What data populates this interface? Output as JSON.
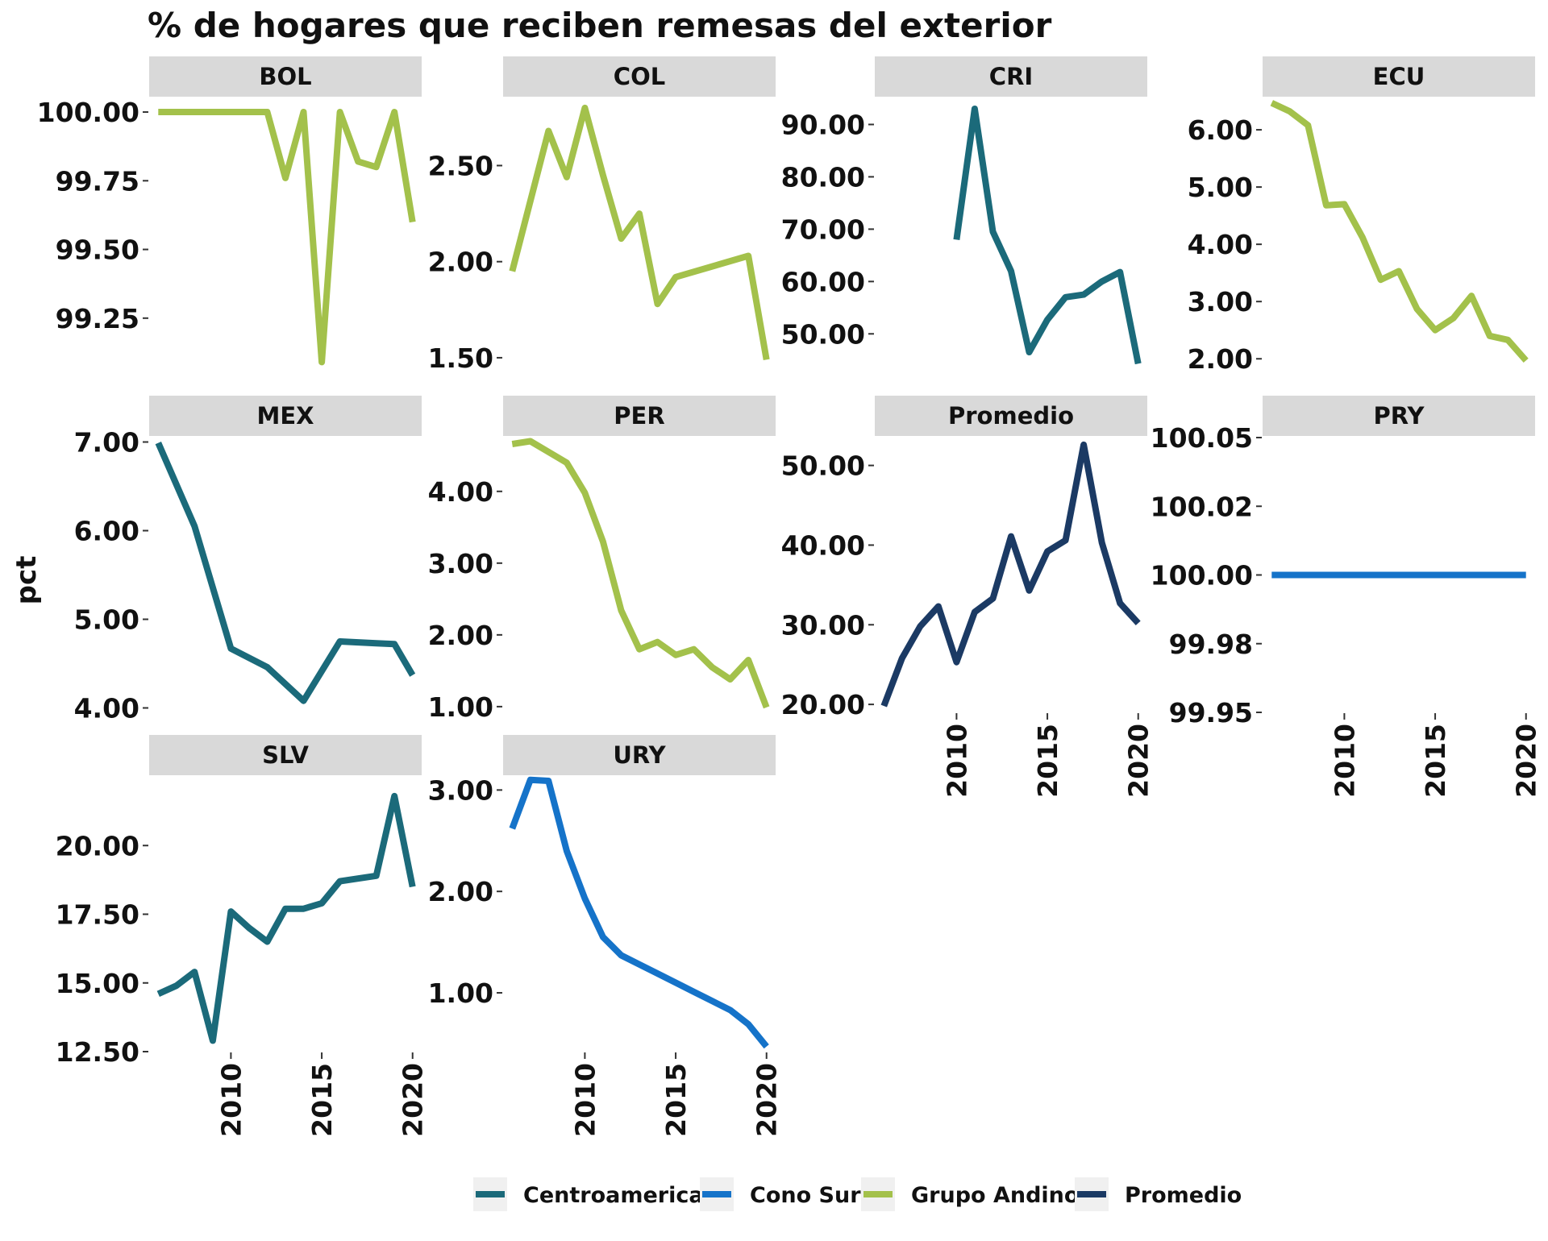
{
  "chart_data": {
    "type": "line",
    "title": "% de hogares que reciben remesas del exterior",
    "xlabel": "",
    "ylabel": "pct",
    "legend": {
      "placement": "bottom",
      "entries": [
        "Centroamerica",
        "Cono Sur",
        "Grupo Andino",
        "Promedio"
      ]
    },
    "colors": {
      "Centroamerica": "#1b6a7a",
      "Cono Sur": "#1573c9",
      "Grupo Andino": "#a3c14b",
      "Promedio": "#1b3a64",
      "strip_bg": "#d9d9d9"
    },
    "grid": false,
    "x_ticks": [
      2010,
      2015,
      2020
    ],
    "xlim": [
      2005.5,
      2020.5
    ],
    "panels": [
      {
        "name": "BOL",
        "group": "Grupo Andino",
        "ylim": [
          99.05,
          100.05
        ],
        "y_ticks": [
          {
            "v": 99.25,
            "label": "99.25"
          },
          {
            "v": 99.5,
            "label": "99.50"
          },
          {
            "v": 99.75,
            "label": "99.75"
          },
          {
            "v": 100.0,
            "label": "100.00"
          }
        ],
        "x": [
          2006,
          2007,
          2008,
          2009,
          2010,
          2011,
          2012,
          2013,
          2014,
          2015,
          2016,
          2017,
          2018,
          2019,
          2020
        ],
        "y": [
          100.0,
          100.0,
          100.0,
          100.0,
          100.0,
          100.0,
          100.0,
          99.76,
          100.0,
          99.09,
          100.0,
          99.82,
          99.8,
          100.0,
          99.6
        ]
      },
      {
        "name": "COL",
        "group": "Grupo Andino",
        "ylim": [
          1.42,
          2.85
        ],
        "y_ticks": [
          {
            "v": 1.5,
            "label": "1.50"
          },
          {
            "v": 2.0,
            "label": "2.00"
          },
          {
            "v": 2.5,
            "label": "2.50"
          }
        ],
        "x": [
          2006,
          2008,
          2009,
          2010,
          2011,
          2012,
          2013,
          2014,
          2015,
          2019,
          2020
        ],
        "y": [
          1.95,
          2.68,
          2.44,
          2.8,
          2.45,
          2.12,
          2.25,
          1.78,
          1.92,
          2.03,
          1.49
        ]
      },
      {
        "name": "CRI",
        "group": "Centroamerica",
        "ylim": [
          42.5,
          95
        ],
        "y_ticks": [
          {
            "v": 50,
            "label": "50.00"
          },
          {
            "v": 60,
            "label": "60.00"
          },
          {
            "v": 70,
            "label": "70.00"
          },
          {
            "v": 80,
            "label": "80.00"
          },
          {
            "v": 90,
            "label": "90.00"
          }
        ],
        "x": [
          2010,
          2011,
          2012,
          2013,
          2014,
          2015,
          2016,
          2017,
          2018,
          2019,
          2020
        ],
        "y": [
          68,
          93,
          69.5,
          62,
          46.5,
          52.7,
          57,
          57.5,
          60,
          61.8,
          44.3
        ]
      },
      {
        "name": "ECU",
        "group": "Grupo Andino",
        "ylim": [
          1.75,
          6.55
        ],
        "y_ticks": [
          {
            "v": 2,
            "label": "2.00"
          },
          {
            "v": 3,
            "label": "3.00"
          },
          {
            "v": 4,
            "label": "4.00"
          },
          {
            "v": 5,
            "label": "5.00"
          },
          {
            "v": 6,
            "label": "6.00"
          }
        ],
        "x": [
          2006,
          2007,
          2008,
          2009,
          2010,
          2011,
          2012,
          2013,
          2014,
          2015,
          2016,
          2017,
          2018,
          2019,
          2020
        ],
        "y": [
          6.47,
          6.32,
          6.08,
          4.68,
          4.7,
          4.12,
          3.38,
          3.53,
          2.87,
          2.5,
          2.71,
          3.1,
          2.4,
          2.33,
          1.97
        ]
      },
      {
        "name": "MEX",
        "group": "Centroamerica",
        "ylim": [
          3.95,
          7.05
        ],
        "y_ticks": [
          {
            "v": 4,
            "label": "4.00"
          },
          {
            "v": 5,
            "label": "5.00"
          },
          {
            "v": 6,
            "label": "6.00"
          },
          {
            "v": 7,
            "label": "7.00"
          }
        ],
        "x": [
          2006,
          2008,
          2010,
          2012,
          2014,
          2016,
          2018,
          2019,
          2020
        ],
        "y": [
          6.99,
          6.05,
          4.67,
          4.46,
          4.08,
          4.75,
          4.73,
          4.72,
          4.37
        ]
      },
      {
        "name": "PER",
        "group": "Grupo Andino",
        "ylim": [
          0.92,
          4.75
        ],
        "y_ticks": [
          {
            "v": 1,
            "label": "1.00"
          },
          {
            "v": 2,
            "label": "2.00"
          },
          {
            "v": 3,
            "label": "3.00"
          },
          {
            "v": 4,
            "label": "4.00"
          }
        ],
        "x": [
          2006,
          2007,
          2008,
          2009,
          2010,
          2011,
          2012,
          2013,
          2014,
          2015,
          2016,
          2017,
          2018,
          2019,
          2020
        ],
        "y": [
          4.66,
          4.7,
          4.55,
          4.4,
          3.98,
          3.3,
          2.34,
          1.8,
          1.9,
          1.72,
          1.8,
          1.55,
          1.38,
          1.65,
          0.99
        ]
      },
      {
        "name": "Promedio",
        "group": "Promedio",
        "ylim": [
          19,
          53.5
        ],
        "y_ticks": [
          {
            "v": 20,
            "label": "20.00"
          },
          {
            "v": 30,
            "label": "30.00"
          },
          {
            "v": 40,
            "label": "40.00"
          },
          {
            "v": 50,
            "label": "50.00"
          }
        ],
        "x": [
          2006,
          2007,
          2008,
          2009,
          2010,
          2011,
          2012,
          2013,
          2014,
          2015,
          2016,
          2017,
          2018,
          2019,
          2020
        ],
        "y": [
          19.8,
          25.8,
          29.8,
          32.3,
          25.3,
          31.6,
          33.3,
          41.1,
          34.3,
          39.2,
          40.6,
          52.6,
          40.3,
          32.7,
          30.2
        ]
      },
      {
        "name": "PRY",
        "group": "Cono Sur",
        "ylim": [
          99.95,
          100.05
        ],
        "y_ticks": [
          {
            "v": 99.95,
            "label": "99.95"
          },
          {
            "v": 99.975,
            "label": "99.98"
          },
          {
            "v": 100.0,
            "label": "100.00"
          },
          {
            "v": 100.025,
            "label": "100.02"
          },
          {
            "v": 100.05,
            "label": "100.05"
          }
        ],
        "x": [
          2006,
          2020
        ],
        "y": [
          100.0,
          100.0
        ]
      },
      {
        "name": "SLV",
        "group": "Centroamerica",
        "ylim": [
          12.5,
          22.5
        ],
        "y_ticks": [
          {
            "v": 12.5,
            "label": "12.50"
          },
          {
            "v": 15,
            "label": "15.00"
          },
          {
            "v": 17.5,
            "label": "17.50"
          },
          {
            "v": 20,
            "label": "20.00"
          }
        ],
        "x": [
          2006,
          2007,
          2008,
          2009,
          2010,
          2011,
          2012,
          2013,
          2014,
          2015,
          2016,
          2017,
          2018,
          2019,
          2020
        ],
        "y": [
          14.6,
          14.9,
          15.4,
          12.9,
          17.6,
          17.0,
          16.5,
          17.7,
          17.7,
          17.9,
          18.7,
          18.8,
          18.9,
          21.8,
          18.5
        ]
      },
      {
        "name": "URY",
        "group": "Cono Sur",
        "ylim": [
          0.42,
          3.13
        ],
        "y_ticks": [
          {
            "v": 1,
            "label": "1.00"
          },
          {
            "v": 2,
            "label": "2.00"
          },
          {
            "v": 3,
            "label": "3.00"
          }
        ],
        "x": [
          2006,
          2007,
          2008,
          2009,
          2010,
          2011,
          2012,
          2013,
          2014,
          2015,
          2016,
          2017,
          2018,
          2019,
          2020
        ],
        "y": [
          2.62,
          3.1,
          3.09,
          2.4,
          1.93,
          1.55,
          1.37,
          1.28,
          1.19,
          1.1,
          1.01,
          0.92,
          0.83,
          0.69,
          0.47
        ]
      }
    ]
  }
}
